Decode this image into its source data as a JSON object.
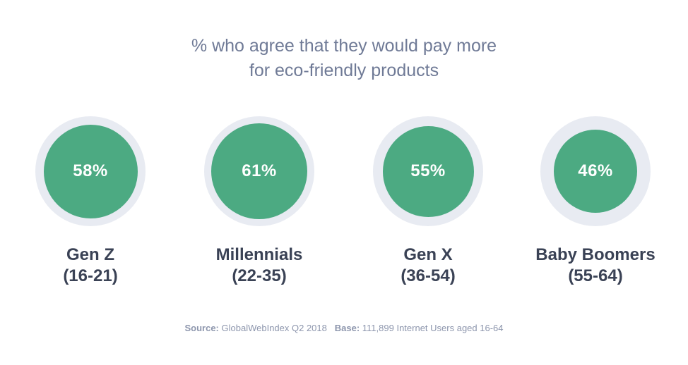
{
  "title": {
    "line1": "% who agree that they would pay more",
    "line2": "for eco-friendly products"
  },
  "chart_data": {
    "type": "bubble",
    "title": "% who agree that they would pay more for eco-friendly products",
    "categories": [
      "Gen Z (16-21)",
      "Millennials (22-35)",
      "Gen X (36-54)",
      "Baby Boomers (55-64)"
    ],
    "values": [
      58,
      61,
      55,
      46
    ],
    "unit": "%",
    "items": [
      {
        "name": "Gen Z",
        "age": "(16-21)",
        "value": 58,
        "label": "58%"
      },
      {
        "name": "Millennials",
        "age": "(22-35)",
        "value": 61,
        "label": "61%"
      },
      {
        "name": "Gen X",
        "age": "(36-54)",
        "value": 55,
        "label": "55%"
      },
      {
        "name": "Baby Boomers",
        "age": "(55-64)",
        "value": 46,
        "label": "46%"
      }
    ],
    "colors": {
      "disc": "#4caa82",
      "ring": "#e8ebf2"
    }
  },
  "footer": {
    "source_label": "Source:",
    "source_text": "GlobalWebIndex Q2 2018",
    "base_label": "Base:",
    "base_text": "111,899 Internet Users aged 16-64"
  }
}
